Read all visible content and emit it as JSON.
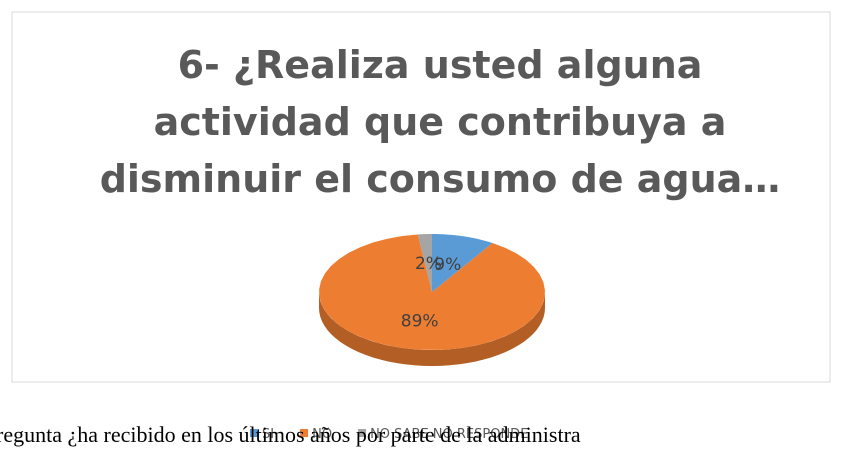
{
  "chart_data": {
    "type": "pie",
    "title_lines": [
      "6- ¿Realiza usted alguna",
      "actividad que contribuya a",
      "disminuir el consumo de agua…"
    ],
    "categories": [
      "SI",
      "NO",
      "NO SABE NO RESPONDE"
    ],
    "values": [
      9,
      89,
      2
    ],
    "value_labels": [
      "9%",
      "89%",
      "2%"
    ],
    "colors": [
      "#5b9bd5",
      "#ed7d31",
      "#a5a5a5"
    ],
    "legend": "bottom"
  },
  "document_text": "regunta ¿ha recibido en los últimos años por parte de la administra"
}
